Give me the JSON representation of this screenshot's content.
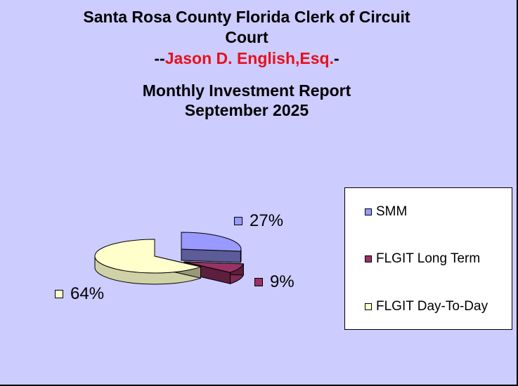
{
  "header": {
    "title_line1": "Santa Rosa County Florida Clerk of Circuit",
    "title_line2": "Court",
    "name_prefix": "--",
    "name": "Jason D. English,Esq.",
    "name_suffix": "-",
    "report_title": "Monthly Investment Report",
    "report_period": "September 2025"
  },
  "chart_data": {
    "type": "pie",
    "title": "Monthly Investment Report September 2025",
    "categories": [
      "SMM",
      "FLGIT Long Term",
      "FLGIT Day-To-Day"
    ],
    "values": [
      27,
      9,
      64
    ],
    "labels": [
      "27%",
      "9%",
      "64%"
    ],
    "colors": [
      "#9999ff",
      "#993366",
      "#ffffcc"
    ],
    "legend_position": "right",
    "style": "3d-exploded"
  }
}
